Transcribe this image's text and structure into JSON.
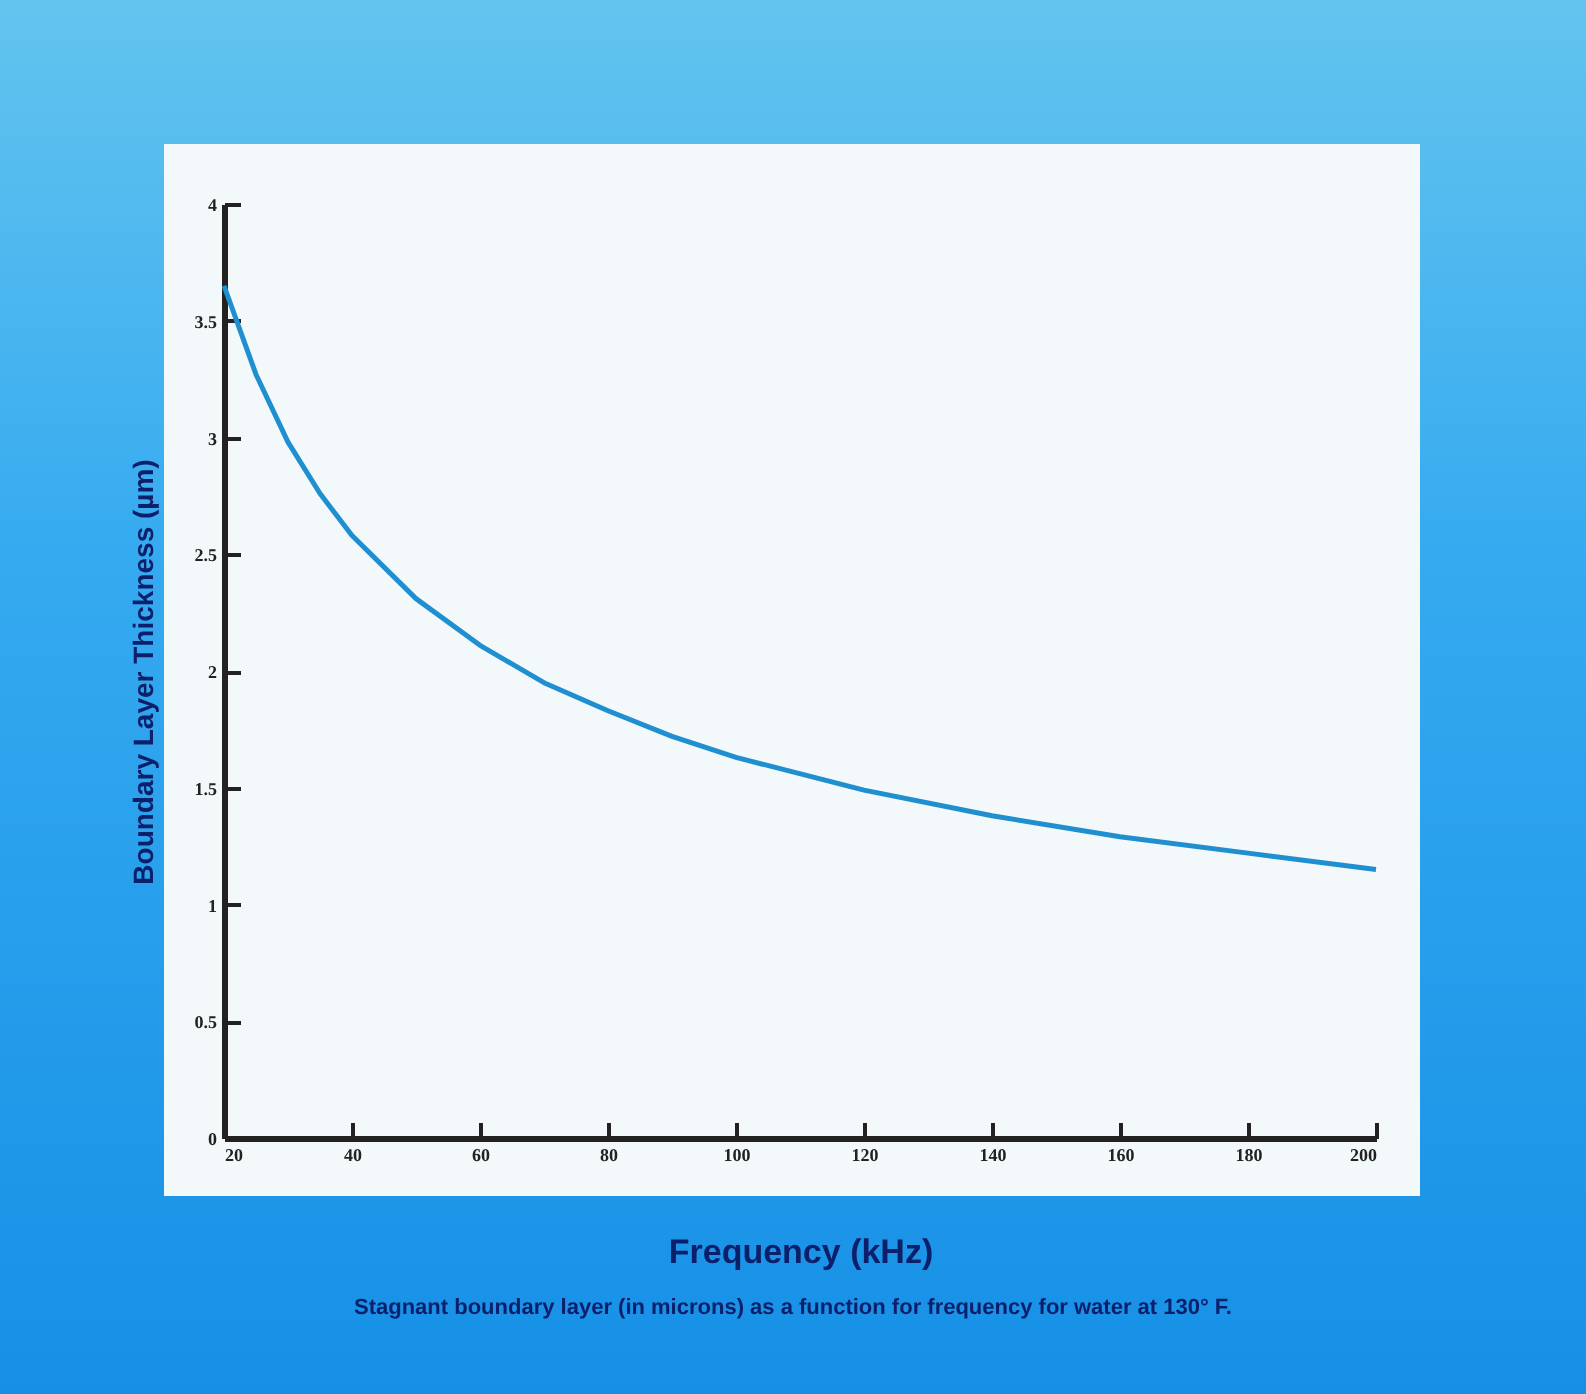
{
  "chart_data": {
    "type": "line",
    "xlabel": "Frequency (kHz)",
    "ylabel": "Boundary Layer Thickness (µm)",
    "annotations": [
      "Stagnant boundary layer (in microns) as a function for frequency for water at 130° F."
    ],
    "x": [
      20,
      25,
      30,
      35,
      40,
      50,
      60,
      70,
      80,
      90,
      100,
      120,
      140,
      160,
      180,
      200
    ],
    "series": [
      {
        "color": "#1f8fd0",
        "values": [
          3.65,
          3.27,
          2.98,
          2.76,
          2.58,
          2.31,
          2.11,
          1.95,
          1.83,
          1.72,
          1.63,
          1.49,
          1.38,
          1.29,
          1.22,
          1.15
        ]
      }
    ],
    "xlim": [
      20,
      200
    ],
    "xticks": [
      20,
      40,
      60,
      80,
      100,
      120,
      140,
      160,
      180,
      200
    ],
    "ylim": [
      0,
      4
    ],
    "yticks": [
      0,
      0.5,
      1,
      1.5,
      2,
      2.5,
      3,
      3.5,
      4
    ],
    "grid": false,
    "legend": false,
    "marker": "none",
    "line_style": "solid"
  }
}
